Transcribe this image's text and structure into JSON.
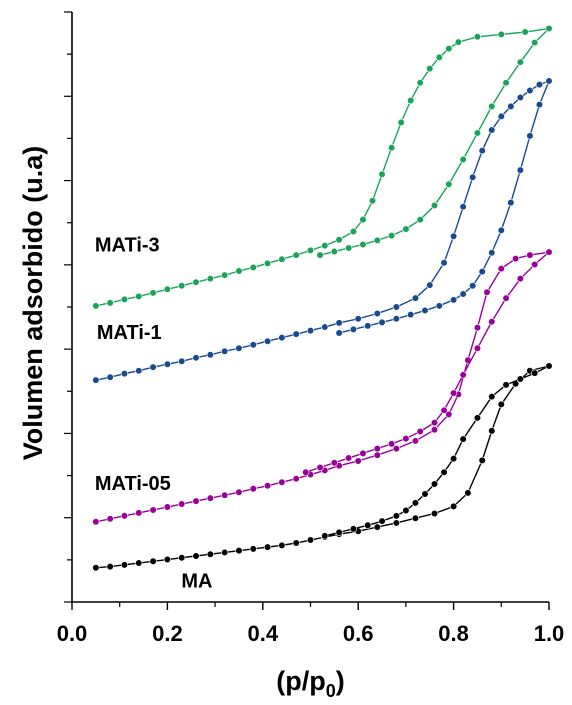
{
  "chart_data": {
    "type": "line",
    "xlabel": "(p/p",
    "xlabel_sub": "0",
    "xlabel_close": ")",
    "ylabel": "Volumen adsorbido (u.a)",
    "xlim": [
      0.0,
      1.0
    ],
    "ylim": [
      0,
      100
    ],
    "x_ticks": [
      "0.0",
      "0.2",
      "0.4",
      "0.6",
      "0.8",
      "1.0"
    ],
    "y_tick_labels_shown": false,
    "grid": false,
    "series": [
      {
        "name": "MA",
        "color": "#000000",
        "adsorption": [
          [
            0.05,
            5.8
          ],
          [
            0.08,
            6.0
          ],
          [
            0.11,
            6.3
          ],
          [
            0.14,
            6.6
          ],
          [
            0.17,
            6.9
          ],
          [
            0.2,
            7.2
          ],
          [
            0.23,
            7.5
          ],
          [
            0.26,
            7.8
          ],
          [
            0.29,
            8.1
          ],
          [
            0.32,
            8.4
          ],
          [
            0.35,
            8.7
          ],
          [
            0.38,
            9.0
          ],
          [
            0.41,
            9.3
          ],
          [
            0.44,
            9.6
          ],
          [
            0.47,
            10.0
          ],
          [
            0.5,
            10.5
          ],
          [
            0.53,
            11.0
          ],
          [
            0.56,
            11.5
          ],
          [
            0.6,
            12.0
          ],
          [
            0.64,
            12.7
          ],
          [
            0.68,
            13.4
          ],
          [
            0.72,
            14.2
          ],
          [
            0.76,
            15.0
          ],
          [
            0.8,
            16.2
          ],
          [
            0.83,
            18.5
          ],
          [
            0.86,
            24.0
          ],
          [
            0.88,
            29.0
          ],
          [
            0.9,
            33.5
          ],
          [
            0.93,
            37.0
          ],
          [
            0.96,
            39.2
          ],
          [
            1.0,
            40.0
          ]
        ],
        "desorption": [
          [
            1.0,
            40.0
          ],
          [
            0.97,
            38.8
          ],
          [
            0.94,
            37.8
          ],
          [
            0.91,
            36.8
          ],
          [
            0.88,
            34.8
          ],
          [
            0.85,
            31.2
          ],
          [
            0.82,
            27.6
          ],
          [
            0.8,
            24.3
          ],
          [
            0.78,
            22.0
          ],
          [
            0.76,
            20.0
          ],
          [
            0.74,
            18.3
          ],
          [
            0.72,
            16.8
          ],
          [
            0.7,
            15.5
          ],
          [
            0.68,
            14.6
          ],
          [
            0.65,
            13.7
          ],
          [
            0.62,
            13.0
          ],
          [
            0.59,
            12.4
          ],
          [
            0.56,
            11.8
          ],
          [
            0.53,
            11.2
          ]
        ]
      },
      {
        "name": "MATi-05",
        "color": "#990099",
        "adsorption": [
          [
            0.05,
            13.6
          ],
          [
            0.08,
            14.1
          ],
          [
            0.11,
            14.6
          ],
          [
            0.14,
            15.1
          ],
          [
            0.17,
            15.6
          ],
          [
            0.2,
            16.1
          ],
          [
            0.23,
            16.6
          ],
          [
            0.26,
            17.1
          ],
          [
            0.29,
            17.6
          ],
          [
            0.32,
            18.1
          ],
          [
            0.35,
            18.6
          ],
          [
            0.38,
            19.2
          ],
          [
            0.41,
            19.7
          ],
          [
            0.44,
            20.3
          ],
          [
            0.47,
            20.9
          ],
          [
            0.5,
            21.6
          ],
          [
            0.53,
            22.3
          ],
          [
            0.56,
            23.1
          ],
          [
            0.6,
            23.9
          ],
          [
            0.64,
            24.9
          ],
          [
            0.68,
            26.0
          ],
          [
            0.72,
            27.3
          ],
          [
            0.76,
            29.2
          ],
          [
            0.79,
            31.8
          ],
          [
            0.81,
            35.2
          ],
          [
            0.83,
            41.0
          ],
          [
            0.85,
            46.5
          ],
          [
            0.87,
            52.5
          ],
          [
            0.9,
            56.5
          ],
          [
            0.93,
            58.2
          ],
          [
            0.96,
            58.8
          ],
          [
            1.0,
            59.3
          ]
        ],
        "desorption": [
          [
            1.0,
            59.3
          ],
          [
            0.97,
            57.2
          ],
          [
            0.94,
            54.8
          ],
          [
            0.91,
            51.5
          ],
          [
            0.88,
            47.5
          ],
          [
            0.85,
            43.0
          ],
          [
            0.82,
            38.5
          ],
          [
            0.8,
            35.4
          ],
          [
            0.78,
            32.5
          ],
          [
            0.76,
            30.4
          ],
          [
            0.73,
            28.9
          ],
          [
            0.7,
            27.7
          ],
          [
            0.67,
            26.8
          ],
          [
            0.64,
            26.0
          ],
          [
            0.61,
            25.2
          ],
          [
            0.58,
            24.4
          ],
          [
            0.55,
            23.6
          ],
          [
            0.52,
            22.8
          ],
          [
            0.49,
            22.0
          ]
        ]
      },
      {
        "name": "MATi-1",
        "color": "#174a8f",
        "adsorption": [
          [
            0.05,
            37.6
          ],
          [
            0.08,
            38.1
          ],
          [
            0.11,
            38.7
          ],
          [
            0.14,
            39.2
          ],
          [
            0.17,
            39.8
          ],
          [
            0.2,
            40.3
          ],
          [
            0.23,
            40.8
          ],
          [
            0.26,
            41.4
          ],
          [
            0.29,
            41.9
          ],
          [
            0.32,
            42.5
          ],
          [
            0.35,
            43.0
          ],
          [
            0.38,
            43.6
          ],
          [
            0.41,
            44.2
          ],
          [
            0.44,
            44.8
          ],
          [
            0.47,
            45.4
          ],
          [
            0.5,
            46.0
          ],
          [
            0.53,
            46.6
          ],
          [
            0.56,
            47.3
          ],
          [
            0.6,
            48.0
          ],
          [
            0.64,
            48.9
          ],
          [
            0.68,
            50.0
          ],
          [
            0.72,
            51.5
          ],
          [
            0.75,
            53.7
          ],
          [
            0.78,
            57.5
          ],
          [
            0.8,
            62.0
          ],
          [
            0.82,
            67.0
          ],
          [
            0.84,
            72.0
          ],
          [
            0.86,
            76.5
          ],
          [
            0.88,
            80.0
          ],
          [
            0.9,
            82.3
          ],
          [
            0.92,
            84.0
          ],
          [
            0.94,
            85.5
          ],
          [
            0.96,
            86.7
          ],
          [
            0.98,
            87.7
          ],
          [
            1.0,
            88.3
          ]
        ],
        "desorption": [
          [
            1.0,
            88.3
          ],
          [
            0.98,
            84.3
          ],
          [
            0.96,
            79.0
          ],
          [
            0.94,
            73.2
          ],
          [
            0.92,
            67.7
          ],
          [
            0.9,
            63.0
          ],
          [
            0.88,
            59.2
          ],
          [
            0.86,
            56.0
          ],
          [
            0.84,
            53.6
          ],
          [
            0.82,
            52.2
          ],
          [
            0.8,
            51.2
          ],
          [
            0.77,
            50.2
          ],
          [
            0.74,
            49.4
          ],
          [
            0.71,
            48.7
          ],
          [
            0.68,
            48.0
          ],
          [
            0.65,
            47.4
          ],
          [
            0.62,
            46.8
          ],
          [
            0.59,
            46.2
          ],
          [
            0.56,
            45.6
          ]
        ]
      },
      {
        "name": "MATi-3",
        "color": "#1aa35a",
        "adsorption": [
          [
            0.05,
            50.2
          ],
          [
            0.08,
            50.7
          ],
          [
            0.11,
            51.3
          ],
          [
            0.14,
            51.8
          ],
          [
            0.17,
            52.4
          ],
          [
            0.2,
            53.0
          ],
          [
            0.23,
            53.6
          ],
          [
            0.26,
            54.2
          ],
          [
            0.29,
            54.8
          ],
          [
            0.32,
            55.4
          ],
          [
            0.35,
            56.1
          ],
          [
            0.38,
            56.7
          ],
          [
            0.41,
            57.4
          ],
          [
            0.44,
            58.1
          ],
          [
            0.47,
            58.8
          ],
          [
            0.5,
            59.6
          ],
          [
            0.53,
            60.4
          ],
          [
            0.56,
            61.4
          ],
          [
            0.59,
            62.8
          ],
          [
            0.61,
            64.8
          ],
          [
            0.63,
            68.0
          ],
          [
            0.65,
            72.5
          ],
          [
            0.67,
            77.0
          ],
          [
            0.69,
            81.3
          ],
          [
            0.71,
            85.0
          ],
          [
            0.73,
            88.0
          ],
          [
            0.75,
            90.4
          ],
          [
            0.77,
            92.3
          ],
          [
            0.79,
            93.8
          ],
          [
            0.81,
            94.9
          ],
          [
            0.85,
            95.8
          ],
          [
            0.9,
            96.2
          ],
          [
            0.95,
            96.6
          ],
          [
            1.0,
            97.2
          ]
        ],
        "desorption": [
          [
            1.0,
            97.2
          ],
          [
            0.97,
            94.8
          ],
          [
            0.94,
            91.5
          ],
          [
            0.91,
            88.0
          ],
          [
            0.88,
            84.0
          ],
          [
            0.85,
            79.5
          ],
          [
            0.82,
            75.0
          ],
          [
            0.79,
            70.8
          ],
          [
            0.76,
            67.2
          ],
          [
            0.73,
            64.8
          ],
          [
            0.7,
            63.2
          ],
          [
            0.67,
            62.1
          ],
          [
            0.64,
            61.3
          ],
          [
            0.61,
            60.6
          ],
          [
            0.58,
            60.0
          ],
          [
            0.55,
            59.4
          ],
          [
            0.52,
            58.8
          ]
        ]
      }
    ],
    "labels": [
      {
        "text": "MA",
        "x": 0.2,
        "y": 2.5
      },
      {
        "text": "MATi-05",
        "x": 0.05,
        "y": 19.0
      },
      {
        "text": "MATi-1",
        "x": 0.05,
        "y": 44.6
      },
      {
        "text": "MATi-3",
        "x": 0.05,
        "y": 59.4
      }
    ]
  }
}
